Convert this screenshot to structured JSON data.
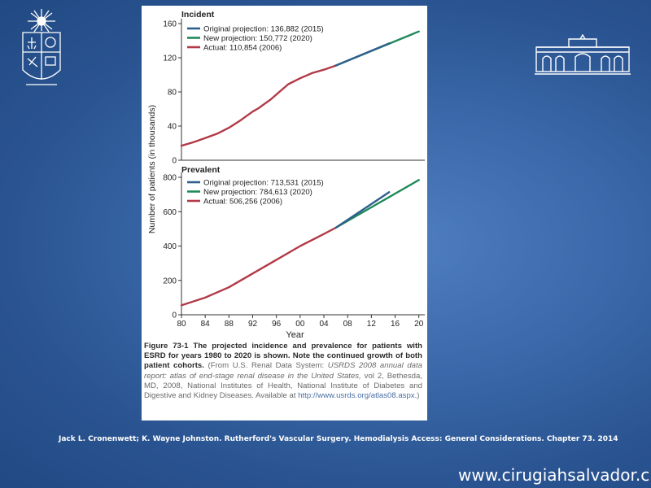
{
  "caption": {
    "figure_label": "Figure 73-1",
    "text_main": "The projected incidence and prevalence for patients with ESRD for years 1980 to 2020 is shown. Note the continued growth of both patient cohorts.",
    "source_pre": "(From U.S. Renal Data System:",
    "source_title": "USRDS 2008 annual data report: atlas of end-stage renal disease in the United States,",
    "source_post": "vol 2, Bethesda, MD, 2008, National Institutes of Health, National Institute of Diabetes and Digestive and Kidney Diseases. Available at",
    "source_url": "http://www.usrds.org/atlas08.aspx.",
    "source_end": ")"
  },
  "citation": "Jack L. Cronenwett; K. Wayne Johnston. Rutherford's Vascular Surgery. Hemodialysis Access: General Considerations. Chapter 73. 2014",
  "website": "www.cirugiahsalvador.cl",
  "colors": {
    "original": "#2f5f8e",
    "new": "#1f8a5a",
    "actual": "#b23a48"
  },
  "chart_data": [
    {
      "type": "line",
      "title": "Incident",
      "ylabel": "Number of patients (in thousands)",
      "xlabel": "",
      "ylim": [
        0,
        160
      ],
      "yticks": [
        0,
        40,
        80,
        120,
        160
      ],
      "xlim": [
        1980,
        2021
      ],
      "legend_position": "top-left",
      "series": [
        {
          "name": "Original projection: 136,882 (2015)",
          "color": "#2f5f8e",
          "x": [
            2006,
            2015
          ],
          "y": [
            110.9,
            136.9
          ]
        },
        {
          "name": "New projection: 150,772 (2020)",
          "color": "#1f8a5a",
          "x": [
            2006,
            2020
          ],
          "y": [
            110.9,
            150.8
          ]
        },
        {
          "name": "Actual: 110,854 (2006)",
          "color": "#b23a48",
          "x": [
            1980,
            1982,
            1984,
            1986,
            1988,
            1990,
            1992,
            1993,
            1994,
            1995,
            1996,
            1998,
            2000,
            2002,
            2004,
            2006
          ],
          "y": [
            17,
            21,
            26,
            31,
            38,
            47,
            57,
            61,
            66,
            71,
            77,
            89,
            96,
            102,
            106,
            110.9
          ]
        }
      ]
    },
    {
      "type": "line",
      "title": "Prevalent",
      "ylabel": "Number of patients (in thousands)",
      "xlabel": "Year",
      "ylim": [
        0,
        800
      ],
      "yticks": [
        0,
        200,
        400,
        600,
        800
      ],
      "xlim": [
        1980,
        2021
      ],
      "xticks": [
        "80",
        "84",
        "88",
        "92",
        "96",
        "00",
        "04",
        "08",
        "12",
        "16",
        "20"
      ],
      "legend_position": "top-left",
      "series": [
        {
          "name": "Original projection: 713,531 (2015)",
          "color": "#2f5f8e",
          "x": [
            2006,
            2015
          ],
          "y": [
            506.3,
            713.5
          ]
        },
        {
          "name": "New projection: 784,613 (2020)",
          "color": "#1f8a5a",
          "x": [
            2006,
            2020
          ],
          "y": [
            506.3,
            784.6
          ]
        },
        {
          "name": "Actual: 506,256 (2006)",
          "color": "#b23a48",
          "x": [
            1980,
            1984,
            1988,
            1992,
            1996,
            2000,
            2004,
            2006
          ],
          "y": [
            55,
            100,
            160,
            240,
            320,
            400,
            470,
            506.3
          ]
        }
      ]
    }
  ]
}
